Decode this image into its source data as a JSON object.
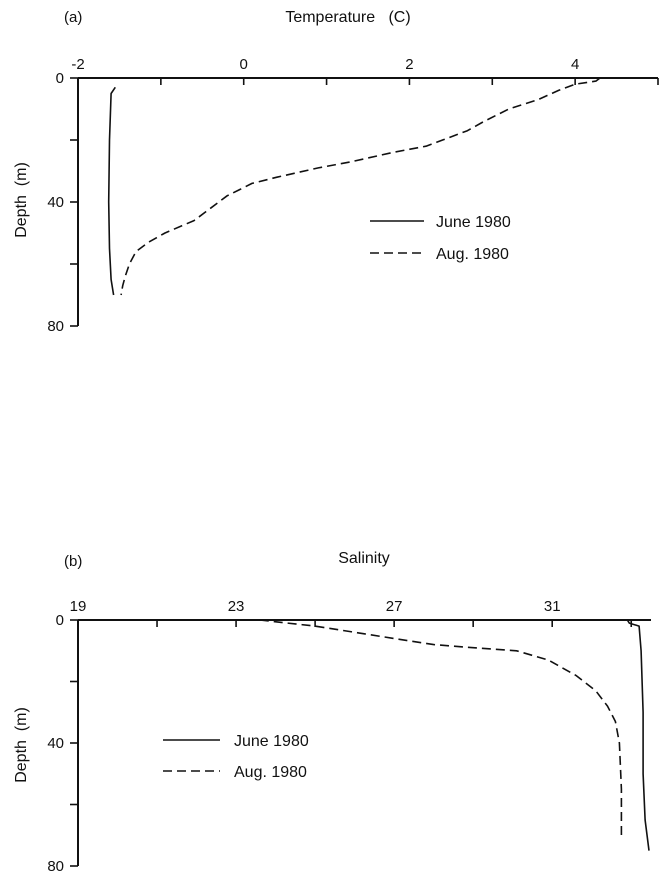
{
  "chart_data": [
    {
      "type": "line",
      "panel_label": "(a)",
      "title": "Temperature   (C)",
      "xlabel": "",
      "ylabel": "Depth  (m)",
      "xlim": [
        -2,
        5
      ],
      "ylim": [
        0,
        80
      ],
      "y_inverted": true,
      "x_axis_position": "top",
      "x_tick_values": [
        -2,
        -1,
        0,
        1,
        2,
        3,
        4,
        5
      ],
      "x_tick_labels": [
        "-2",
        "",
        "0",
        "",
        "2",
        "",
        "4",
        ""
      ],
      "y_tick_values": [
        0,
        20,
        40,
        60,
        80
      ],
      "y_tick_labels": [
        "0",
        "",
        "40",
        "",
        "80"
      ],
      "legend_position": "center-right",
      "series": [
        {
          "name": "June 1980",
          "style": "solid",
          "points": [
            [
              -1.55,
              3
            ],
            [
              -1.6,
              5
            ],
            [
              -1.62,
              20
            ],
            [
              -1.63,
              40
            ],
            [
              -1.62,
              55
            ],
            [
              -1.6,
              65
            ],
            [
              -1.57,
              70
            ]
          ]
        },
        {
          "name": "Aug. 1980",
          "style": "dashed",
          "points": [
            [
              4.3,
              0
            ],
            [
              4.25,
              1
            ],
            [
              4.0,
              2
            ],
            [
              3.8,
              4
            ],
            [
              3.55,
              7
            ],
            [
              3.2,
              10
            ],
            [
              2.9,
              14
            ],
            [
              2.7,
              17
            ],
            [
              2.4,
              20
            ],
            [
              2.2,
              22
            ],
            [
              1.8,
              24
            ],
            [
              1.3,
              27
            ],
            [
              0.9,
              29
            ],
            [
              0.4,
              32
            ],
            [
              0.1,
              34
            ],
            [
              -0.05,
              36
            ],
            [
              -0.2,
              38
            ],
            [
              -0.4,
              42
            ],
            [
              -0.6,
              46
            ],
            [
              -0.95,
              50
            ],
            [
              -1.15,
              53
            ],
            [
              -1.3,
              56
            ],
            [
              -1.38,
              60
            ],
            [
              -1.43,
              64
            ],
            [
              -1.46,
              67
            ],
            [
              -1.48,
              70
            ]
          ]
        }
      ]
    },
    {
      "type": "line",
      "panel_label": "(b)",
      "title": "Salinity",
      "xlabel": "",
      "ylabel": "Depth  (m)",
      "xlim": [
        19,
        33.5
      ],
      "ylim": [
        0,
        80
      ],
      "y_inverted": true,
      "x_axis_position": "top",
      "x_tick_values": [
        19,
        21,
        23,
        25,
        27,
        29,
        31,
        33
      ],
      "x_tick_labels": [
        "19",
        "",
        "23",
        "",
        "27",
        "",
        "31",
        ""
      ],
      "y_tick_values": [
        0,
        20,
        40,
        60,
        80
      ],
      "y_tick_labels": [
        "0",
        "",
        "40",
        "",
        "80"
      ],
      "legend_position": "center-left",
      "series": [
        {
          "name": "June 1980",
          "style": "solid",
          "points": [
            [
              32.9,
              0
            ],
            [
              32.95,
              1
            ],
            [
              33.2,
              2
            ],
            [
              33.25,
              10
            ],
            [
              33.3,
              30
            ],
            [
              33.3,
              50
            ],
            [
              33.35,
              65
            ],
            [
              33.45,
              75
            ]
          ]
        },
        {
          "name": "Aug. 1980",
          "style": "dashed",
          "points": [
            [
              23.6,
              0
            ],
            [
              24.3,
              1
            ],
            [
              25.0,
              2
            ],
            [
              26.0,
              4
            ],
            [
              27.0,
              6
            ],
            [
              28.0,
              8
            ],
            [
              29.0,
              9
            ],
            [
              30.1,
              10
            ],
            [
              30.9,
              13
            ],
            [
              31.6,
              18
            ],
            [
              32.1,
              23
            ],
            [
              32.4,
              28
            ],
            [
              32.6,
              33
            ],
            [
              32.7,
              40
            ],
            [
              32.75,
              55
            ],
            [
              32.75,
              70
            ]
          ]
        }
      ]
    }
  ]
}
